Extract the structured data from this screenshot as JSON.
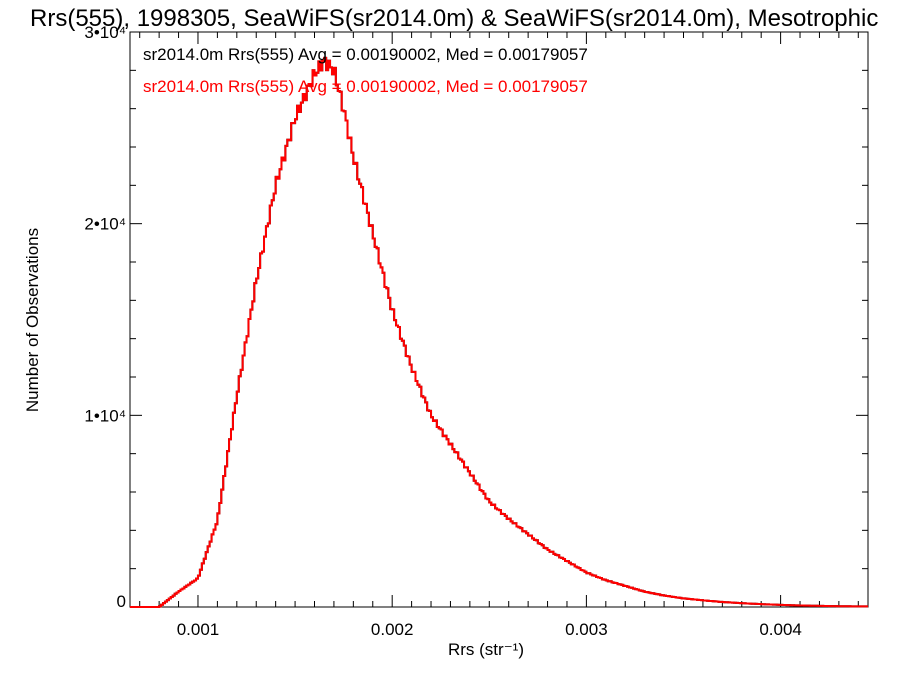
{
  "chart_data": {
    "type": "histogram",
    "title": "Rrs(555), 1998305, SeaWiFS(sr2014.0m) & SeaWiFS(sr2014.0m), Mesotrophic",
    "xlabel": "Rrs (str⁻¹)",
    "ylabel": "Number of Observations",
    "xlim": [
      0.00065,
      0.00445
    ],
    "ylim": [
      0,
      30000
    ],
    "x_ticks": [
      {
        "value": 0.001,
        "label": "0.001"
      },
      {
        "value": 0.002,
        "label": "0.002"
      },
      {
        "value": 0.003,
        "label": "0.003"
      },
      {
        "value": 0.004,
        "label": "0.004"
      }
    ],
    "y_ticks": [
      {
        "value": 0,
        "label": "0"
      },
      {
        "value": 10000,
        "label": "1•10⁴"
      },
      {
        "value": 20000,
        "label": "2•10⁴"
      },
      {
        "value": 30000,
        "label": "3•10⁴"
      }
    ],
    "series": [
      {
        "name": "sr2014.0m Rrs(555) Avg = 0.00190002, Med = 0.00179057",
        "color": "#000000",
        "x": [
          0.0008,
          0.0009,
          0.001,
          0.0011,
          0.0012,
          0.0013,
          0.0014,
          0.0015,
          0.0016,
          0.00165,
          0.0017,
          0.00175,
          0.0018,
          0.0019,
          0.002,
          0.0021,
          0.0022,
          0.0023,
          0.0024,
          0.0025,
          0.0026,
          0.0027,
          0.0028,
          0.0029,
          0.003,
          0.0031,
          0.0032,
          0.0033,
          0.0034,
          0.0035,
          0.0036,
          0.0037,
          0.0038,
          0.0039,
          0.004,
          0.0041,
          0.0042,
          0.0043,
          0.00445
        ],
        "y": [
          0,
          800,
          1500,
          4500,
          11000,
          17000,
          22000,
          25500,
          27800,
          28500,
          28000,
          26000,
          23500,
          19500,
          15500,
          12500,
          10000,
          8500,
          7000,
          5500,
          4600,
          3800,
          3000,
          2400,
          1800,
          1400,
          1100,
          800,
          600,
          450,
          350,
          260,
          200,
          150,
          110,
          80,
          60,
          40,
          30
        ]
      },
      {
        "name": "sr2014.0m Rrs(555) Avg = 0.00190002, Med = 0.00179057",
        "color": "#ff0000",
        "x": [
          0.0008,
          0.0009,
          0.001,
          0.0011,
          0.0012,
          0.0013,
          0.0014,
          0.0015,
          0.0016,
          0.00165,
          0.0017,
          0.00175,
          0.0018,
          0.0019,
          0.002,
          0.0021,
          0.0022,
          0.0023,
          0.0024,
          0.0025,
          0.0026,
          0.0027,
          0.0028,
          0.0029,
          0.003,
          0.0031,
          0.0032,
          0.0033,
          0.0034,
          0.0035,
          0.0036,
          0.0037,
          0.0038,
          0.0039,
          0.004,
          0.0041,
          0.0042,
          0.0043,
          0.00445
        ],
        "y": [
          0,
          800,
          1500,
          4500,
          11000,
          17000,
          22000,
          25500,
          27800,
          28500,
          28000,
          26000,
          23500,
          19500,
          15500,
          12500,
          10000,
          8500,
          7000,
          5500,
          4600,
          3800,
          3000,
          2400,
          1800,
          1400,
          1100,
          800,
          600,
          450,
          350,
          260,
          200,
          150,
          110,
          80,
          60,
          40,
          30
        ]
      }
    ],
    "legend": "top-left",
    "grid": false
  }
}
